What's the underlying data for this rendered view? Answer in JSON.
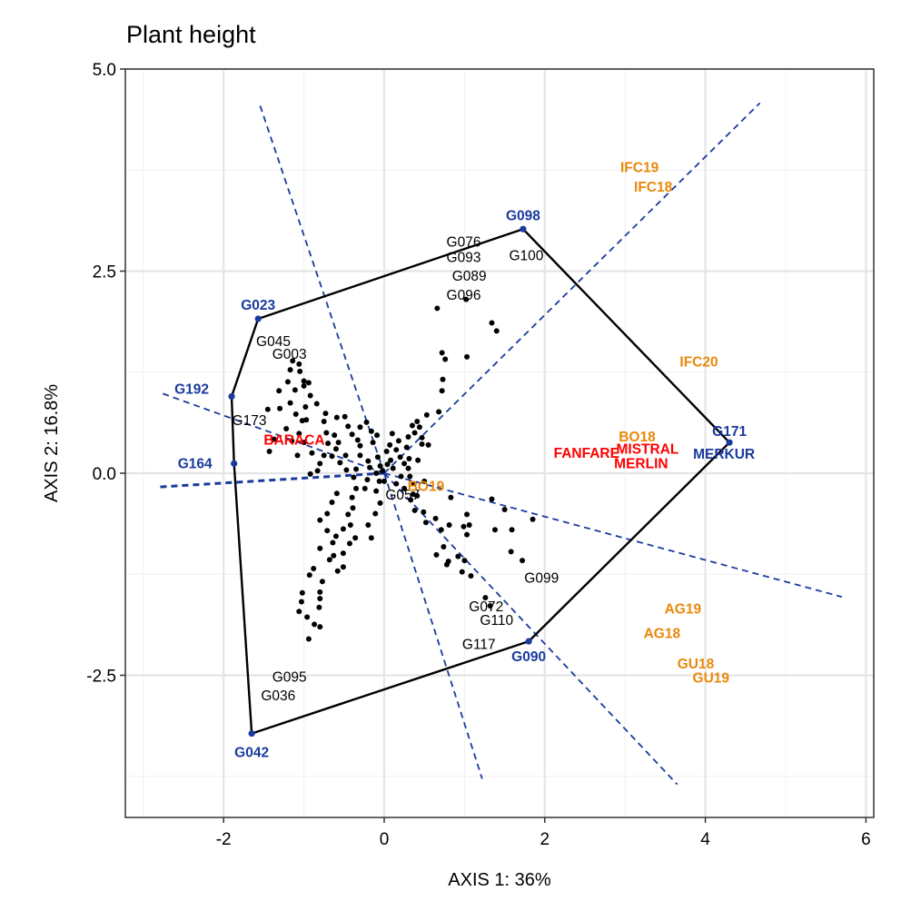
{
  "chart_data": {
    "type": "scatter",
    "title": "Plant height",
    "xlabel": "AXIS 1: 36%",
    "ylabel": "AXIS 2: 16.8%",
    "xlim": [
      -3.2,
      6.1
    ],
    "ylim": [
      -4.3,
      5.0
    ],
    "grid": true,
    "x_ticks": [
      -2,
      0,
      2,
      4,
      6
    ],
    "x_tick_labels": [
      "-2",
      "0",
      "2",
      "4",
      "6"
    ],
    "y_ticks": [
      -2.5,
      0,
      2.5,
      5
    ],
    "y_tick_labels": [
      "-2.5",
      "0.0",
      "2.5",
      "5.0"
    ],
    "colors": {
      "genotype_points": "#000000",
      "hull": "#000000",
      "vertex_genotypes": "#1A3A9E",
      "sector_lines": "#1A3A9E",
      "mega_environment_1": "#FF0000",
      "mega_environment_2": "#E8890C",
      "grid_major": "#E5E5E5",
      "grid_minor": "#F2F2F2"
    },
    "hull_vertices": [
      {
        "label": "G098",
        "x": 1.73,
        "y": 3.02
      },
      {
        "label": "G171",
        "x": 4.3,
        "y": 0.38
      },
      {
        "label": "G090",
        "x": 1.8,
        "y": -2.08
      },
      {
        "label": "G042",
        "x": -1.65,
        "y": -3.22
      },
      {
        "label": "G164",
        "x": -1.87,
        "y": 0.12
      },
      {
        "label": "G192",
        "x": -1.9,
        "y": 0.95
      },
      {
        "label": "G023",
        "x": -1.57,
        "y": 1.91
      }
    ],
    "sector_lines": [
      {
        "x1": 0,
        "y1": 0,
        "x2": 4.68,
        "y2": 4.58
      },
      {
        "x1": 0,
        "y1": 0,
        "x2": -1.55,
        "y2": 4.56
      },
      {
        "x1": 0,
        "y1": 0,
        "x2": -2.8,
        "y2": 1.0
      },
      {
        "x1": 0,
        "y1": 0,
        "x2": -2.8,
        "y2": -0.17
      },
      {
        "x1": 0,
        "y1": 0,
        "x2": 1.22,
        "y2": -3.78
      },
      {
        "x1": 0,
        "y1": 0,
        "x2": 3.65,
        "y2": -3.85
      },
      {
        "x1": 0,
        "y1": 0,
        "x2": 5.7,
        "y2": -1.53
      }
    ],
    "environments_mega1": [
      {
        "label": "BARACA",
        "x": -1.12,
        "y": 0.42
      },
      {
        "label": "FANFARE",
        "x": 2.52,
        "y": 0.26
      },
      {
        "label": "MISTRAL",
        "x": 3.28,
        "y": 0.31
      },
      {
        "label": "MERLIN",
        "x": 3.2,
        "y": 0.13
      }
    ],
    "environments_mega2": [
      {
        "label": "IFC19",
        "x": 3.18,
        "y": 3.79
      },
      {
        "label": "IFC18",
        "x": 3.35,
        "y": 3.55
      },
      {
        "label": "IFC20",
        "x": 3.92,
        "y": 1.39
      },
      {
        "label": "BO18",
        "x": 3.15,
        "y": 0.46
      },
      {
        "label": "BO19",
        "x": 0.52,
        "y": -0.15
      },
      {
        "label": "AG19",
        "x": 3.72,
        "y": -1.67
      },
      {
        "label": "AG18",
        "x": 3.46,
        "y": -1.97
      },
      {
        "label": "GU18",
        "x": 3.88,
        "y": -2.35
      },
      {
        "label": "GU19",
        "x": 4.07,
        "y": -2.52
      }
    ],
    "vertex_labels": [
      {
        "label": "G098",
        "x": 1.73,
        "y": 3.05,
        "dx": 0,
        "dy": -7,
        "anchor": "middle"
      },
      {
        "label": "G171",
        "x": 4.3,
        "y": 0.38,
        "dx": 0,
        "dy": -7,
        "anchor": "middle"
      },
      {
        "label": "MERKUR",
        "x": 4.3,
        "y": 0.18,
        "dx": -6,
        "dy": 0,
        "anchor": "middle"
      },
      {
        "label": "G090",
        "x": 1.8,
        "y": -2.08,
        "dx": 0,
        "dy": 22,
        "anchor": "middle"
      },
      {
        "label": "G042",
        "x": -1.65,
        "y": -3.22,
        "dx": 0,
        "dy": 26,
        "anchor": "middle"
      },
      {
        "label": "G164",
        "x": -1.87,
        "y": 0.12,
        "dx": -43,
        "dy": 5,
        "anchor": "middle"
      },
      {
        "label": "G192",
        "x": -1.9,
        "y": 0.95,
        "dx": -44,
        "dy": -3,
        "anchor": "middle"
      },
      {
        "label": "G023",
        "x": -1.57,
        "y": 1.91,
        "dx": 0,
        "dy": -10,
        "anchor": "middle"
      }
    ],
    "genotype_labels": [
      {
        "label": "G076",
        "x": 0.99,
        "y": 2.86
      },
      {
        "label": "G093",
        "x": 0.99,
        "y": 2.67
      },
      {
        "label": "G100",
        "x": 1.77,
        "y": 2.69
      },
      {
        "label": "G089",
        "x": 1.06,
        "y": 2.44
      },
      {
        "label": "G096",
        "x": 0.99,
        "y": 2.2
      },
      {
        "label": "G045",
        "x": -1.38,
        "y": 1.63
      },
      {
        "label": "G003",
        "x": -1.18,
        "y": 1.47
      },
      {
        "label": "G173",
        "x": -1.68,
        "y": 0.65
      },
      {
        "label": "G099",
        "x": 1.96,
        "y": -1.3
      },
      {
        "label": "G072",
        "x": 1.27,
        "y": -1.65
      },
      {
        "label": "G110",
        "x": 1.4,
        "y": -1.82
      },
      {
        "label": "G117",
        "x": 1.18,
        "y": -2.12
      },
      {
        "label": "G095",
        "x": -1.18,
        "y": -2.52
      },
      {
        "label": "G036",
        "x": -1.32,
        "y": -2.75
      },
      {
        "label": "G057",
        "x": 0.23,
        "y": -0.27
      }
    ],
    "genotype_points": [
      [
        1.02,
        2.15
      ],
      [
        0.66,
        2.04
      ],
      [
        1.34,
        1.86
      ],
      [
        1.4,
        1.76
      ],
      [
        0.72,
        1.49
      ],
      [
        0.76,
        1.41
      ],
      [
        1.03,
        1.44
      ],
      [
        0.73,
        1.16
      ],
      [
        0.72,
        1.02
      ],
      [
        0.68,
        0.76
      ],
      [
        0.53,
        0.72
      ],
      [
        0.41,
        0.64
      ],
      [
        0.44,
        0.57
      ],
      [
        0.35,
        0.59
      ],
      [
        0.38,
        0.5
      ],
      [
        0.47,
        0.44
      ],
      [
        0.47,
        0.36
      ],
      [
        0.55,
        0.35
      ],
      [
        0.3,
        0.45
      ],
      [
        0.28,
        0.32
      ],
      [
        0.18,
        0.4
      ],
      [
        0.1,
        0.49
      ],
      [
        0.15,
        0.29
      ],
      [
        0.08,
        0.16
      ],
      [
        0.2,
        0.2
      ],
      [
        0.25,
        0.12
      ],
      [
        0.11,
        0.06
      ],
      [
        0.04,
        0.11
      ],
      [
        -0.02,
        0.03
      ],
      [
        -0.05,
        0.09
      ],
      [
        0.3,
        0.06
      ],
      [
        0.32,
        -0.04
      ],
      [
        0.21,
        -0.04
      ],
      [
        0.15,
        -0.13
      ],
      [
        0.25,
        -0.19
      ],
      [
        0.36,
        -0.26
      ],
      [
        0.41,
        -0.28
      ],
      [
        0.33,
        -0.33
      ],
      [
        0.38,
        -0.46
      ],
      [
        0.49,
        -0.48
      ],
      [
        0.52,
        -0.61
      ],
      [
        0.64,
        -0.56
      ],
      [
        0.71,
        -0.7
      ],
      [
        0.81,
        -0.64
      ],
      [
        0.74,
        -0.91
      ],
      [
        0.65,
        -1.01
      ],
      [
        0.8,
        -1.09
      ],
      [
        0.78,
        -1.13
      ],
      [
        0.92,
        -1.03
      ],
      [
        0.97,
        -1.22
      ],
      [
        1.03,
        -0.51
      ],
      [
        0.99,
        -0.66
      ],
      [
        1.06,
        -0.64
      ],
      [
        1.03,
        -0.76
      ],
      [
        0.83,
        -0.3
      ],
      [
        1.0,
        -1.08
      ],
      [
        1.08,
        -1.27
      ],
      [
        1.34,
        -0.32
      ],
      [
        1.5,
        -0.45
      ],
      [
        1.38,
        -0.7
      ],
      [
        1.59,
        -0.7
      ],
      [
        1.85,
        -0.57
      ],
      [
        1.58,
        -0.97
      ],
      [
        1.72,
        -1.08
      ],
      [
        1.26,
        -1.54
      ],
      [
        1.32,
        -1.64
      ],
      [
        -0.08,
        0.2
      ],
      [
        -0.1,
        0.0
      ],
      [
        -0.18,
        0.07
      ],
      [
        -0.21,
        -0.08
      ],
      [
        -0.2,
        0.15
      ],
      [
        -0.3,
        0.22
      ],
      [
        -0.3,
        0.34
      ],
      [
        -0.35,
        0.05
      ],
      [
        -0.38,
        -0.05
      ],
      [
        -0.24,
        -0.19
      ],
      [
        -0.35,
        -0.19
      ],
      [
        -0.4,
        -0.3
      ],
      [
        -0.39,
        -0.43
      ],
      [
        -0.45,
        -0.51
      ],
      [
        -0.42,
        -0.64
      ],
      [
        -0.51,
        -0.69
      ],
      [
        -0.36,
        -0.8
      ],
      [
        -0.2,
        -0.64
      ],
      [
        -0.11,
        -0.5
      ],
      [
        -0.1,
        -0.22
      ],
      [
        -0.05,
        -0.37
      ],
      [
        -0.16,
        -0.8
      ],
      [
        -0.43,
        -0.87
      ],
      [
        -0.51,
        -0.99
      ],
      [
        -0.63,
        -1.02
      ],
      [
        -0.51,
        -1.16
      ],
      [
        -0.58,
        -1.21
      ],
      [
        -0.68,
        -1.07
      ],
      [
        -0.8,
        -0.93
      ],
      [
        -0.88,
        -1.18
      ],
      [
        -0.64,
        -0.86
      ],
      [
        -0.6,
        -0.78
      ],
      [
        -0.71,
        -0.71
      ],
      [
        -0.93,
        -1.26
      ],
      [
        -0.77,
        -1.34
      ],
      [
        -0.8,
        -1.47
      ],
      [
        -1.02,
        -1.48
      ],
      [
        -1.03,
        -1.59
      ],
      [
        -0.8,
        -1.55
      ],
      [
        -0.81,
        -1.66
      ],
      [
        -1.06,
        -1.71
      ],
      [
        -0.96,
        -1.78
      ],
      [
        -0.87,
        -1.87
      ],
      [
        -0.8,
        -1.9
      ],
      [
        -0.94,
        -2.05
      ],
      [
        -0.71,
        -0.5
      ],
      [
        -0.8,
        -0.58
      ],
      [
        -0.65,
        -0.36
      ],
      [
        -0.59,
        -0.25
      ],
      [
        -0.47,
        0.04
      ],
      [
        -0.55,
        0.13
      ],
      [
        -0.65,
        0.21
      ],
      [
        -0.6,
        0.3
      ],
      [
        -0.7,
        0.37
      ],
      [
        -0.75,
        0.22
      ],
      [
        -0.8,
        0.12
      ],
      [
        -0.83,
        0.03
      ],
      [
        -0.92,
        -0.01
      ],
      [
        -0.9,
        0.25
      ],
      [
        -1.0,
        0.38
      ],
      [
        -1.06,
        0.49
      ],
      [
        -1.08,
        0.22
      ],
      [
        -1.15,
        0.4
      ],
      [
        -1.22,
        0.55
      ],
      [
        -1.37,
        0.42
      ],
      [
        -1.43,
        0.27
      ],
      [
        -1.02,
        0.65
      ],
      [
        -0.97,
        0.66
      ],
      [
        -0.75,
        0.64
      ],
      [
        -0.73,
        0.74
      ],
      [
        -0.84,
        0.86
      ],
      [
        -0.98,
        0.82
      ],
      [
        -1.1,
        0.73
      ],
      [
        -1.17,
        0.87
      ],
      [
        -1.3,
        0.8
      ],
      [
        -1.45,
        0.79
      ],
      [
        -0.92,
        0.96
      ],
      [
        -1.0,
        1.08
      ],
      [
        -1.0,
        1.14
      ],
      [
        -0.94,
        1.12
      ],
      [
        -1.05,
        1.26
      ],
      [
        -1.06,
        1.35
      ],
      [
        -1.14,
        1.39
      ],
      [
        -1.17,
        1.28
      ],
      [
        -1.2,
        1.13
      ],
      [
        -1.31,
        1.02
      ],
      [
        -1.11,
        1.03
      ],
      [
        -0.49,
        0.7
      ],
      [
        -0.59,
        0.69
      ],
      [
        -0.45,
        0.58
      ],
      [
        -0.3,
        0.57
      ],
      [
        -0.22,
        0.63
      ],
      [
        -0.16,
        0.52
      ],
      [
        -0.09,
        0.47
      ],
      [
        -0.14,
        0.38
      ],
      [
        0.03,
        0.27
      ],
      [
        0.07,
        0.35
      ],
      [
        0.31,
        0.18
      ],
      [
        0.42,
        0.16
      ],
      [
        0.37,
        -0.13
      ],
      [
        0.5,
        -0.1
      ],
      [
        -0.06,
        -0.1
      ],
      [
        0.0,
        -0.1
      ],
      [
        -0.33,
        0.41
      ],
      [
        -0.48,
        0.22
      ],
      [
        -0.57,
        0.38
      ],
      [
        -0.62,
        0.47
      ],
      [
        -0.72,
        0.5
      ],
      [
        -0.4,
        0.48
      ]
    ]
  }
}
